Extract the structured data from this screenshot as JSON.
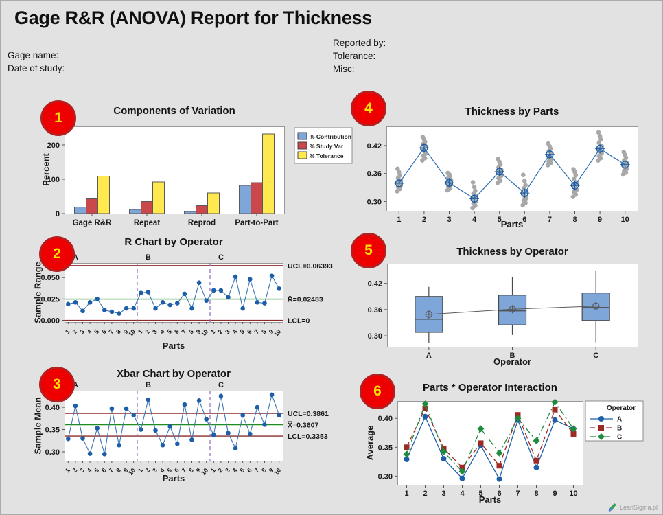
{
  "page": {
    "title": "Gage R&R (ANOVA) Report for Thickness",
    "info_left": [
      "Gage name:",
      "Date of study:"
    ],
    "info_right": [
      "Reported by:",
      "Tolerance:",
      "Misc:"
    ],
    "watermark": "LeanSigma.pl"
  },
  "colors": {
    "page_bg": "#E2E2E2",
    "plot_bg": "#FFFFFF",
    "plot_border": "#999999",
    "badge_bg": "#EE0000",
    "badge_text": "#FFE000",
    "bar_blue": "#7EA6D9",
    "bar_red": "#C8484B",
    "bar_yellow": "#FFE94E",
    "marker_blue": "#1C5FA8",
    "line_blue": "#3A76B4",
    "gray_dot": "#A8A8A8",
    "limit_maroon": "#8C2A2A",
    "center_green": "#1E8C1E",
    "separator_purple": "#8E6BBF",
    "box_fill": "#7EA6D9",
    "series_b_red": "#9E2A25",
    "series_c_green": "#1E8C3C"
  },
  "chart_data": [
    {
      "badge": "1",
      "type": "bar",
      "title": "Components of Variation",
      "ylabel": "Percent",
      "categories": [
        "Gage R&R",
        "Repeat",
        "Reprod",
        "Part-to-Part"
      ],
      "series": [
        {
          "name": "% Contribution",
          "color": "#7EA6D9",
          "values": [
            19,
            12,
            6,
            82
          ]
        },
        {
          "name": "% Study Var",
          "color": "#C8484B",
          "values": [
            43,
            35,
            23,
            90
          ]
        },
        {
          "name": "% Tolerance",
          "color": "#FFE94E",
          "values": [
            109,
            92,
            60,
            232
          ]
        }
      ],
      "yticks": [
        0,
        100,
        200
      ],
      "ytick_labels": [
        "0",
        "100",
        "200"
      ],
      "ylim": [
        0,
        254
      ],
      "legend_position": "right"
    },
    {
      "badge": "2",
      "type": "line",
      "subtype": "control",
      "title": "R Chart by Operator",
      "ylabel": "Sample Range",
      "xlabel": "Parts",
      "operators": [
        "A",
        "B",
        "C"
      ],
      "x_tick_labels": [
        "1",
        "2",
        "3",
        "4",
        "5",
        "6",
        "7",
        "8",
        "9",
        "10"
      ],
      "values": [
        0.019,
        0.021,
        0.011,
        0.021,
        0.025,
        0.012,
        0.01,
        0.008,
        0.014,
        0.014,
        0.032,
        0.033,
        0.014,
        0.021,
        0.018,
        0.02,
        0.031,
        0.014,
        0.044,
        0.023,
        0.035,
        0.035,
        0.027,
        0.051,
        0.014,
        0.048,
        0.021,
        0.02,
        0.052,
        0.037
      ],
      "ucl": {
        "value": 0.06393,
        "label": "UCL=0.06393"
      },
      "center": {
        "value": 0.02483,
        "label": "R̄=0.02483"
      },
      "lcl": {
        "value": 0,
        "label": "LCL=0"
      },
      "yticks": [
        0,
        0.025,
        0.05
      ],
      "ytick_labels": [
        "0.000",
        "0.025",
        "0.050"
      ],
      "ylim": [
        -0.002,
        0.067
      ]
    },
    {
      "badge": "3",
      "type": "line",
      "subtype": "control",
      "title": "Xbar Chart by Operator",
      "ylabel": "Sample Mean",
      "xlabel": "Parts",
      "operators": [
        "A",
        "B",
        "C"
      ],
      "x_tick_labels": [
        "1",
        "2",
        "3",
        "4",
        "5",
        "6",
        "7",
        "8",
        "9",
        "10"
      ],
      "values": [
        0.329,
        0.403,
        0.33,
        0.296,
        0.353,
        0.295,
        0.397,
        0.315,
        0.397,
        0.382,
        0.35,
        0.417,
        0.348,
        0.315,
        0.357,
        0.318,
        0.406,
        0.327,
        0.415,
        0.373,
        0.338,
        0.425,
        0.342,
        0.308,
        0.382,
        0.34,
        0.4,
        0.361,
        0.428,
        0.382
      ],
      "ucl": {
        "value": 0.3861,
        "label": "UCL=0.3861"
      },
      "center": {
        "value": 0.3607,
        "label": "X̿=0.3607"
      },
      "lcl": {
        "value": 0.3353,
        "label": "LCL=0.3353"
      },
      "yticks": [
        0.3,
        0.35,
        0.4
      ],
      "ytick_labels": [
        "0.30",
        "0.35",
        "0.40"
      ],
      "ylim": [
        0.28,
        0.437
      ]
    },
    {
      "badge": "4",
      "type": "scatter",
      "title": "Thickness by Parts",
      "xlabel": "Parts",
      "x_tick_labels": [
        "1",
        "2",
        "3",
        "4",
        "5",
        "6",
        "7",
        "8",
        "9",
        "10"
      ],
      "means": [
        0.339,
        0.415,
        0.34,
        0.306,
        0.364,
        0.318,
        0.401,
        0.334,
        0.413,
        0.379
      ],
      "points": [
        [
          0.322,
          0.327,
          0.331,
          0.335,
          0.338,
          0.341,
          0.345,
          0.35,
          0.356,
          0.363,
          0.37
        ],
        [
          0.388,
          0.393,
          0.398,
          0.403,
          0.408,
          0.413,
          0.418,
          0.423,
          0.428,
          0.433,
          0.438
        ],
        [
          0.324,
          0.328,
          0.332,
          0.336,
          0.339,
          0.342,
          0.346,
          0.35,
          0.354,
          0.358,
          0.361
        ],
        [
          0.286,
          0.291,
          0.296,
          0.3,
          0.304,
          0.308,
          0.312,
          0.317,
          0.323,
          0.331,
          0.341
        ],
        [
          0.34,
          0.345,
          0.35,
          0.355,
          0.36,
          0.364,
          0.368,
          0.373,
          0.379,
          0.385,
          0.391
        ],
        [
          0.292,
          0.297,
          0.302,
          0.307,
          0.312,
          0.317,
          0.322,
          0.328,
          0.335,
          0.344,
          0.357
        ],
        [
          0.378,
          0.382,
          0.386,
          0.39,
          0.394,
          0.398,
          0.403,
          0.408,
          0.413,
          0.418,
          0.424
        ],
        [
          0.31,
          0.315,
          0.32,
          0.325,
          0.33,
          0.335,
          0.341,
          0.348,
          0.356,
          0.363,
          0.369
        ],
        [
          0.388,
          0.393,
          0.398,
          0.403,
          0.408,
          0.413,
          0.419,
          0.426,
          0.433,
          0.44,
          0.448
        ],
        [
          0.358,
          0.362,
          0.366,
          0.37,
          0.374,
          0.378,
          0.383,
          0.388,
          0.394,
          0.4,
          0.406
        ]
      ],
      "yticks": [
        0.3,
        0.36,
        0.42
      ],
      "ytick_labels": [
        "0.30",
        "0.36",
        "0.42"
      ],
      "ylim": [
        0.28,
        0.461
      ]
    },
    {
      "badge": "5",
      "type": "boxplot",
      "title": "Thickness by Operator",
      "xlabel": "Operator",
      "categories": [
        "A",
        "B",
        "C"
      ],
      "boxes": [
        {
          "whisker_low": 0.284,
          "q1": 0.308,
          "median": 0.338,
          "q3": 0.39,
          "whisker_high": 0.412,
          "mean": 0.349
        },
        {
          "whisker_low": 0.302,
          "q1": 0.325,
          "median": 0.357,
          "q3": 0.393,
          "whisker_high": 0.434,
          "mean": 0.361
        },
        {
          "whisker_low": 0.285,
          "q1": 0.335,
          "median": 0.365,
          "q3": 0.398,
          "whisker_high": 0.448,
          "mean": 0.368
        }
      ],
      "yticks": [
        0.3,
        0.36,
        0.42
      ],
      "ytick_labels": [
        "0.30",
        "0.36",
        "0.42"
      ],
      "ylim": [
        0.275,
        0.465
      ]
    },
    {
      "badge": "6",
      "type": "line",
      "subtype": "interaction",
      "title": "Parts * Operator Interaction",
      "ylabel": "Average",
      "xlabel": "Parts",
      "legend_title": "Operator",
      "x_tick_labels": [
        "1",
        "2",
        "3",
        "4",
        "5",
        "6",
        "7",
        "8",
        "9",
        "10"
      ],
      "series": [
        {
          "name": "A",
          "color": "#1C5FA8",
          "marker": "circle",
          "line_style": "solid",
          "values": [
            0.329,
            0.403,
            0.33,
            0.296,
            0.353,
            0.295,
            0.397,
            0.315,
            0.397,
            0.382
          ]
        },
        {
          "name": "B",
          "color": "#9E2A25",
          "marker": "square",
          "line_style": "dashed",
          "values": [
            0.35,
            0.417,
            0.348,
            0.315,
            0.357,
            0.318,
            0.406,
            0.327,
            0.415,
            0.373
          ]
        },
        {
          "name": "C",
          "color": "#1E8C3C",
          "marker": "diamond",
          "line_style": "dashdot",
          "values": [
            0.338,
            0.425,
            0.342,
            0.308,
            0.382,
            0.34,
            0.4,
            0.361,
            0.428,
            0.382
          ]
        }
      ],
      "yticks": [
        0.3,
        0.35,
        0.4
      ],
      "ytick_labels": [
        "0.30",
        "0.35",
        "0.40"
      ],
      "ylim": [
        0.285,
        0.43
      ],
      "legend_position": "right"
    }
  ]
}
